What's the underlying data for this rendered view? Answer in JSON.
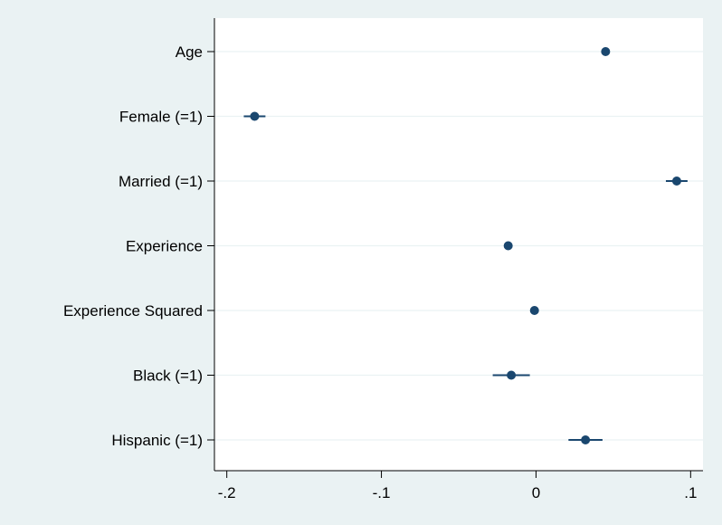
{
  "chart_data": {
    "type": "coefficient-plot",
    "title": "",
    "xlabel": "",
    "ylabel": "",
    "xlim": [
      -0.208,
      0.108
    ],
    "xticks": [
      -0.2,
      -0.1,
      0,
      0.1
    ],
    "xtick_labels": [
      "-.2",
      "-.1",
      "0",
      ".1"
    ],
    "grid": "horizontal",
    "legend": "none",
    "colors": {
      "outer_background": "#eaf2f3",
      "plot_background": "#ffffff",
      "marker": "#1a476f",
      "gridline": "#eaf2f3",
      "axis": "#000000"
    },
    "series": [
      {
        "label": "Age",
        "estimate": 0.045,
        "ci_low": 0.044,
        "ci_high": 0.046
      },
      {
        "label": "Female (=1)",
        "estimate": -0.182,
        "ci_low": -0.189,
        "ci_high": -0.175
      },
      {
        "label": "Married (=1)",
        "estimate": 0.091,
        "ci_low": 0.084,
        "ci_high": 0.098
      },
      {
        "label": "Experience",
        "estimate": -0.018,
        "ci_low": -0.019,
        "ci_high": -0.017
      },
      {
        "label": "Experience Squared",
        "estimate": -0.001,
        "ci_low": -0.0012,
        "ci_high": -0.0008
      },
      {
        "label": "Black (=1)",
        "estimate": -0.016,
        "ci_low": -0.028,
        "ci_high": -0.004
      },
      {
        "label": "Hispanic (=1)",
        "estimate": 0.032,
        "ci_low": 0.021,
        "ci_high": 0.043
      }
    ]
  }
}
